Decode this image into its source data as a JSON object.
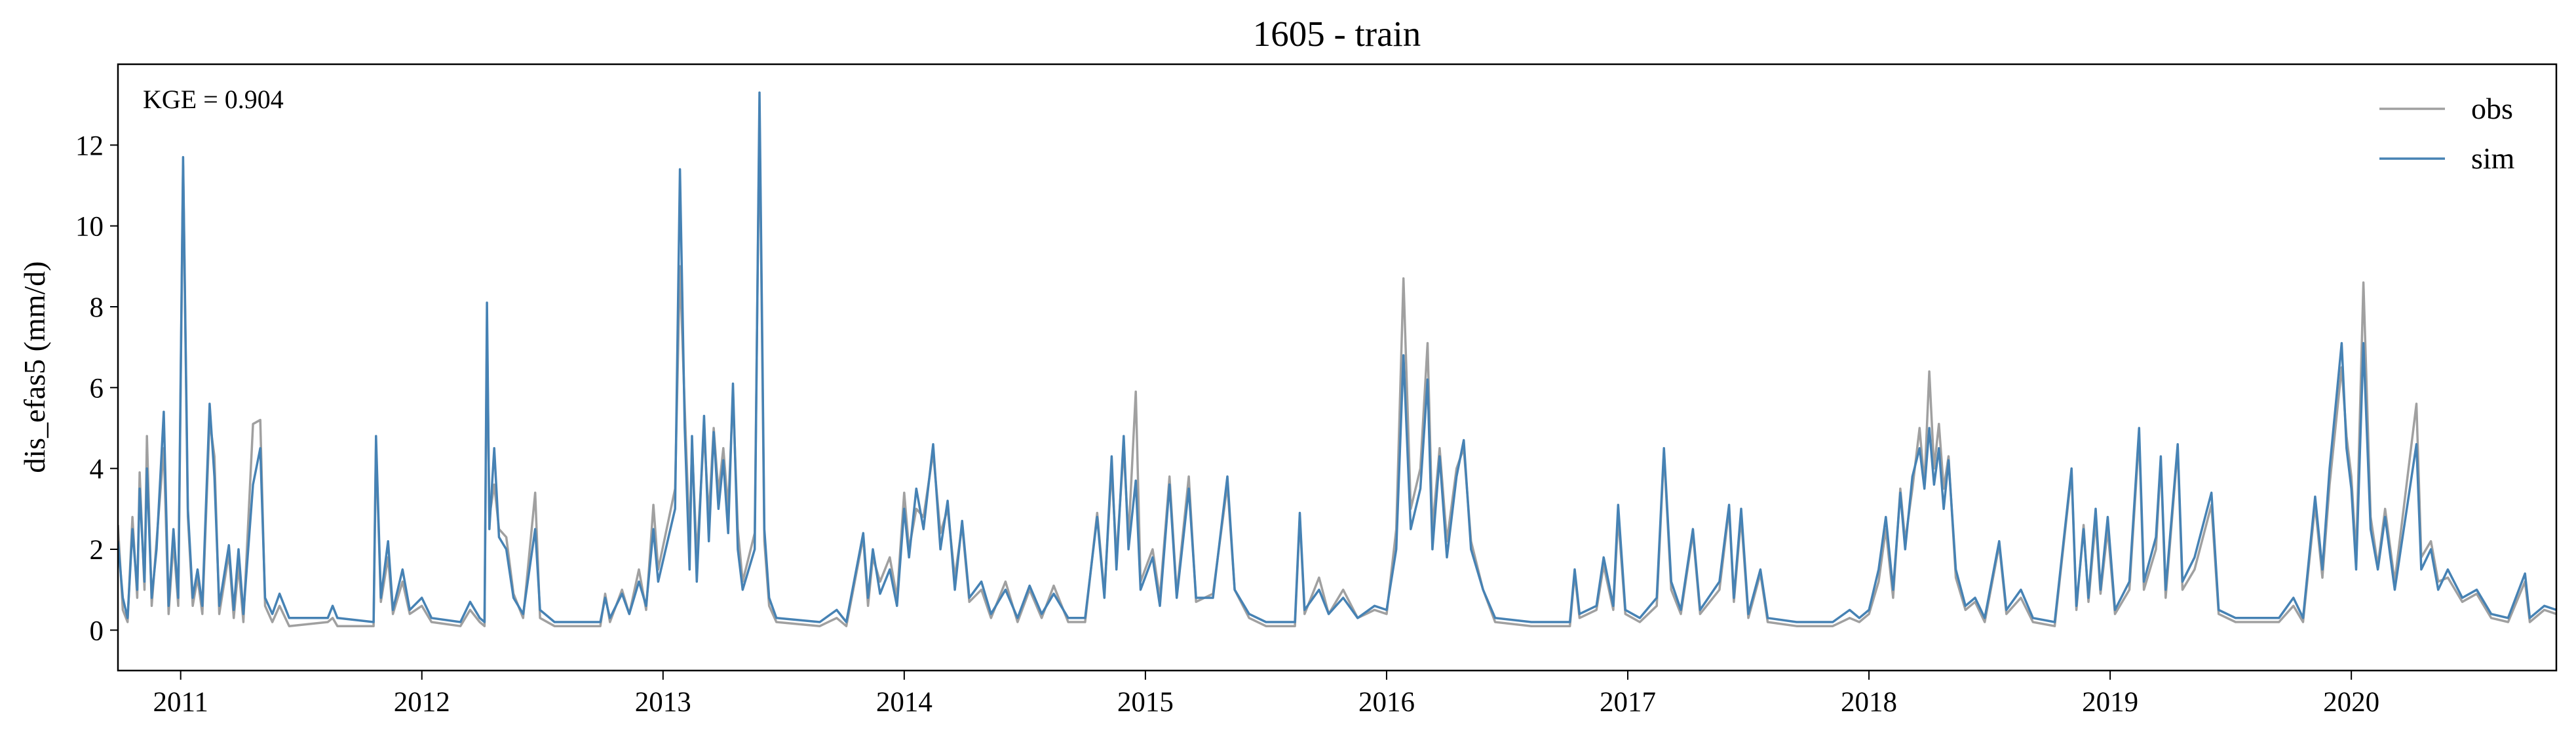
{
  "chart_data": {
    "type": "line",
    "title": "1605 - train",
    "y_label": "dis_efas5 (mm/d)",
    "annotation": "KGE = 0.904",
    "xlim": [
      2010.74,
      2020.85
    ],
    "xticks": [
      2011,
      2012,
      2013,
      2014,
      2015,
      2016,
      2017,
      2018,
      2019,
      2020
    ],
    "ylim": [
      -1,
      14
    ],
    "yticks": [
      0,
      2,
      4,
      6,
      8,
      10,
      12
    ],
    "legend": "upper right",
    "grid": false,
    "x": [
      2010.74,
      2010.76,
      2010.78,
      2010.8,
      2010.82,
      2010.83,
      2010.85,
      2010.86,
      2010.88,
      2010.9,
      2010.93,
      2010.95,
      2010.97,
      2010.99,
      2011.01,
      2011.03,
      2011.05,
      2011.07,
      2011.09,
      2011.12,
      2011.14,
      2011.16,
      2011.2,
      2011.22,
      2011.24,
      2011.26,
      2011.3,
      2011.33,
      2011.35,
      2011.38,
      2011.41,
      2011.45,
      2011.61,
      2011.63,
      2011.65,
      2011.8,
      2011.81,
      2011.83,
      2011.86,
      2011.88,
      2011.92,
      2011.95,
      2012.0,
      2012.04,
      2012.16,
      2012.2,
      2012.24,
      2012.26,
      2012.27,
      2012.28,
      2012.3,
      2012.32,
      2012.35,
      2012.38,
      2012.42,
      2012.47,
      2012.49,
      2012.55,
      2012.74,
      2012.76,
      2012.78,
      2012.83,
      2012.86,
      2012.9,
      2012.93,
      2012.96,
      2012.98,
      2013.05,
      2013.07,
      2013.09,
      2013.11,
      2013.12,
      2013.14,
      2013.17,
      2013.19,
      2013.21,
      2013.23,
      2013.25,
      2013.27,
      2013.29,
      2013.31,
      2013.33,
      2013.38,
      2013.4,
      2013.42,
      2013.44,
      2013.47,
      2013.65,
      2013.72,
      2013.76,
      2013.83,
      2013.85,
      2013.87,
      2013.9,
      2013.94,
      2013.97,
      2014.0,
      2014.02,
      2014.05,
      2014.08,
      2014.12,
      2014.15,
      2014.18,
      2014.21,
      2014.24,
      2014.27,
      2014.32,
      2014.36,
      2014.42,
      2014.47,
      2014.52,
      2014.57,
      2014.62,
      2014.68,
      2014.75,
      2014.8,
      2014.83,
      2014.86,
      2014.88,
      2014.91,
      2014.93,
      2014.96,
      2014.98,
      2015.03,
      2015.06,
      2015.1,
      2015.13,
      2015.18,
      2015.21,
      2015.28,
      2015.34,
      2015.37,
      2015.43,
      2015.5,
      2015.62,
      2015.64,
      2015.66,
      2015.72,
      2015.76,
      2015.82,
      2015.88,
      2015.95,
      2016.0,
      2016.04,
      2016.07,
      2016.1,
      2016.14,
      2016.17,
      2016.19,
      2016.22,
      2016.25,
      2016.29,
      2016.32,
      2016.35,
      2016.4,
      2016.45,
      2016.6,
      2016.76,
      2016.78,
      2016.8,
      2016.87,
      2016.9,
      2016.94,
      2016.96,
      2016.99,
      2017.05,
      2017.12,
      2017.15,
      2017.18,
      2017.22,
      2017.27,
      2017.3,
      2017.38,
      2017.42,
      2017.44,
      2017.47,
      2017.5,
      2017.55,
      2017.58,
      2017.7,
      2017.85,
      2017.92,
      2017.96,
      2018.0,
      2018.04,
      2018.07,
      2018.1,
      2018.13,
      2018.15,
      2018.18,
      2018.21,
      2018.23,
      2018.25,
      2018.27,
      2018.29,
      2018.31,
      2018.33,
      2018.36,
      2018.4,
      2018.44,
      2018.48,
      2018.54,
      2018.57,
      2018.63,
      2018.68,
      2018.77,
      2018.84,
      2018.86,
      2018.89,
      2018.91,
      2018.94,
      2018.96,
      2018.99,
      2019.02,
      2019.08,
      2019.12,
      2019.14,
      2019.19,
      2019.21,
      2019.23,
      2019.28,
      2019.3,
      2019.35,
      2019.42,
      2019.45,
      2019.52,
      2019.7,
      2019.76,
      2019.8,
      2019.85,
      2019.88,
      2019.91,
      2019.96,
      2019.98,
      2020.0,
      2020.02,
      2020.05,
      2020.08,
      2020.11,
      2020.14,
      2020.18,
      2020.27,
      2020.29,
      2020.33,
      2020.36,
      2020.4,
      2020.46,
      2020.52,
      2020.58,
      2020.65,
      2020.72,
      2020.74,
      2020.8,
      2020.85
    ],
    "series": [
      {
        "name": "obs",
        "color": "#a0a0a0",
        "values": [
          2.6,
          0.5,
          0.2,
          2.8,
          0.8,
          3.9,
          1.0,
          4.8,
          0.6,
          2.2,
          4.5,
          0.4,
          2.2,
          0.6,
          11.5,
          2.8,
          0.6,
          1.3,
          0.4,
          5.2,
          4.3,
          0.4,
          1.9,
          0.3,
          1.6,
          0.2,
          5.1,
          5.2,
          0.6,
          0.2,
          0.6,
          0.1,
          0.2,
          0.3,
          0.1,
          0.1,
          4.6,
          0.7,
          1.8,
          0.4,
          1.2,
          0.4,
          0.6,
          0.2,
          0.1,
          0.5,
          0.2,
          0.1,
          7.5,
          2.8,
          3.6,
          2.5,
          2.3,
          0.9,
          0.3,
          3.4,
          0.3,
          0.1,
          0.1,
          0.9,
          0.2,
          1.0,
          0.4,
          1.5,
          0.5,
          3.1,
          1.5,
          3.5,
          9.0,
          5.5,
          2.2,
          4.6,
          1.8,
          4.9,
          2.8,
          5.0,
          3.4,
          4.5,
          3.0,
          5.8,
          2.5,
          1.2,
          2.4,
          12.8,
          2.2,
          0.6,
          0.2,
          0.1,
          0.3,
          0.1,
          2.3,
          0.6,
          1.8,
          1.2,
          1.8,
          0.8,
          3.4,
          2.0,
          3.0,
          2.8,
          4.4,
          2.4,
          3.0,
          1.3,
          2.6,
          0.7,
          1.0,
          0.3,
          1.2,
          0.2,
          1.0,
          0.3,
          1.1,
          0.2,
          0.2,
          2.9,
          0.9,
          4.0,
          1.8,
          4.5,
          2.3,
          5.9,
          1.2,
          2.0,
          0.8,
          3.8,
          0.9,
          3.8,
          0.7,
          0.9,
          3.6,
          1.0,
          0.3,
          0.1,
          0.1,
          2.8,
          0.4,
          1.3,
          0.4,
          1.0,
          0.3,
          0.5,
          0.4,
          2.5,
          8.7,
          3.0,
          4.0,
          7.1,
          2.5,
          4.5,
          2.2,
          4.0,
          4.5,
          2.2,
          1.0,
          0.2,
          0.1,
          0.1,
          1.4,
          0.3,
          0.5,
          1.6,
          0.5,
          2.8,
          0.4,
          0.2,
          0.6,
          4.4,
          1.0,
          0.4,
          2.4,
          0.4,
          1.0,
          3.0,
          0.7,
          2.8,
          0.3,
          1.4,
          0.2,
          0.1,
          0.1,
          0.3,
          0.2,
          0.4,
          1.2,
          2.5,
          0.8,
          3.5,
          2.2,
          3.5,
          5.0,
          3.6,
          6.4,
          4.0,
          5.1,
          3.5,
          4.3,
          1.3,
          0.5,
          0.7,
          0.2,
          2.1,
          0.4,
          0.8,
          0.2,
          0.1,
          3.9,
          0.5,
          2.6,
          0.7,
          2.7,
          0.9,
          2.5,
          0.4,
          1.0,
          4.8,
          1.0,
          2.0,
          4.2,
          0.8,
          4.5,
          1.0,
          1.5,
          3.1,
          0.4,
          0.2,
          0.2,
          0.6,
          0.2,
          3.1,
          1.3,
          3.6,
          6.5,
          4.8,
          3.8,
          1.8,
          8.6,
          2.8,
          1.6,
          3.0,
          1.2,
          5.6,
          1.8,
          2.2,
          1.2,
          1.3,
          0.7,
          0.9,
          0.3,
          0.2,
          1.2,
          0.2,
          0.5,
          0.4
        ]
      },
      {
        "name": "sim",
        "color": "#4682b4",
        "values": [
          2.2,
          0.8,
          0.3,
          2.5,
          1.0,
          3.5,
          1.2,
          4.0,
          0.8,
          2.0,
          5.4,
          0.6,
          2.5,
          0.8,
          11.7,
          3.0,
          0.8,
          1.5,
          0.6,
          5.6,
          3.8,
          0.6,
          2.1,
          0.5,
          2.0,
          0.4,
          3.6,
          4.5,
          0.8,
          0.4,
          0.9,
          0.3,
          0.3,
          0.6,
          0.3,
          0.2,
          4.8,
          0.8,
          2.2,
          0.5,
          1.5,
          0.5,
          0.8,
          0.3,
          0.2,
          0.7,
          0.3,
          0.2,
          8.1,
          2.5,
          4.5,
          2.3,
          2.0,
          0.8,
          0.4,
          2.5,
          0.5,
          0.2,
          0.2,
          0.8,
          0.3,
          0.9,
          0.4,
          1.2,
          0.6,
          2.5,
          1.2,
          3.0,
          11.4,
          5.0,
          1.5,
          4.8,
          1.2,
          5.3,
          2.2,
          4.9,
          3.0,
          4.2,
          2.4,
          6.1,
          2.0,
          1.0,
          2.0,
          13.3,
          2.5,
          0.8,
          0.3,
          0.2,
          0.5,
          0.2,
          2.4,
          0.8,
          2.0,
          0.9,
          1.5,
          0.6,
          3.0,
          1.8,
          3.5,
          2.5,
          4.6,
          2.0,
          3.2,
          1.0,
          2.7,
          0.8,
          1.2,
          0.4,
          1.0,
          0.3,
          1.1,
          0.4,
          0.9,
          0.3,
          0.3,
          2.8,
          0.8,
          4.3,
          1.5,
          4.8,
          2.0,
          3.7,
          1.0,
          1.8,
          0.6,
          3.6,
          0.8,
          3.5,
          0.8,
          0.8,
          3.8,
          1.0,
          0.4,
          0.2,
          0.2,
          2.9,
          0.5,
          1.0,
          0.4,
          0.8,
          0.3,
          0.6,
          0.5,
          2.0,
          6.8,
          2.5,
          3.5,
          6.2,
          2.0,
          4.3,
          1.8,
          3.8,
          4.7,
          2.0,
          1.0,
          0.3,
          0.2,
          0.2,
          1.5,
          0.4,
          0.6,
          1.8,
          0.6,
          3.1,
          0.5,
          0.3,
          0.8,
          4.5,
          1.2,
          0.5,
          2.5,
          0.5,
          1.2,
          3.1,
          0.8,
          3.0,
          0.4,
          1.5,
          0.3,
          0.2,
          0.2,
          0.5,
          0.3,
          0.5,
          1.5,
          2.8,
          1.0,
          3.4,
          2.0,
          3.8,
          4.5,
          3.5,
          5.0,
          3.6,
          4.5,
          3.0,
          4.2,
          1.5,
          0.6,
          0.8,
          0.3,
          2.2,
          0.5,
          1.0,
          0.3,
          0.2,
          4.0,
          0.6,
          2.5,
          0.8,
          3.0,
          1.0,
          2.8,
          0.5,
          1.2,
          5.0,
          1.2,
          2.3,
          4.3,
          1.0,
          4.6,
          1.2,
          1.8,
          3.4,
          0.5,
          0.3,
          0.3,
          0.8,
          0.3,
          3.3,
          1.5,
          4.0,
          7.1,
          4.5,
          3.5,
          1.5,
          7.1,
          2.5,
          1.5,
          2.8,
          1.0,
          4.6,
          1.5,
          2.0,
          1.0,
          1.5,
          0.8,
          1.0,
          0.4,
          0.3,
          1.4,
          0.3,
          0.6,
          0.5
        ]
      }
    ]
  }
}
